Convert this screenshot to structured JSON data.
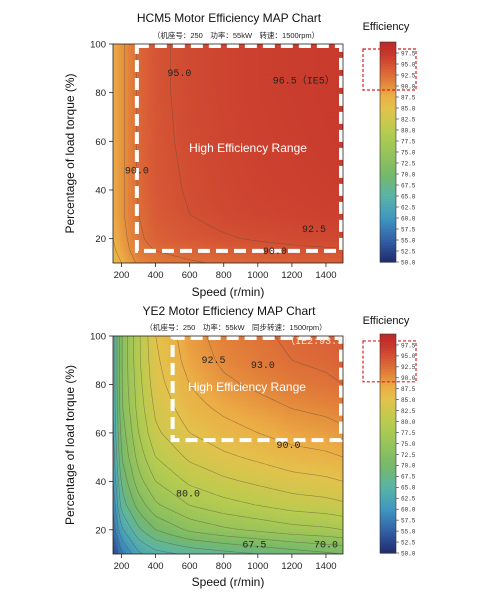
{
  "chart_data": [
    {
      "type": "heatmap",
      "title": "HCM5 Motor Efficiency MAP Chart",
      "subtitle": "（机座号：250　功率：55kW　转速：1500rpm）",
      "xlabel": "Speed (r/min)",
      "ylabel": "Percentage of load torque (%)",
      "x_ticks": [
        200,
        400,
        600,
        800,
        1000,
        1200,
        1400
      ],
      "y_ticks": [
        20,
        40,
        60,
        80,
        100
      ],
      "xlim": [
        150,
        1500
      ],
      "ylim": [
        10,
        100
      ],
      "region_label": "High Efficiency Range",
      "region": {
        "x": [
          290,
          1500
        ],
        "y": [
          15,
          100
        ]
      },
      "grid": false,
      "field": {
        "x": [
          150,
          200,
          250,
          300,
          400,
          600,
          800,
          1000,
          1200,
          1400,
          1500
        ],
        "y": [
          10,
          15,
          20,
          30,
          40,
          60,
          80,
          100
        ],
        "values": [
          [
            86,
            87.5,
            89,
            90.5,
            91.5,
            92.2,
            92.8,
            93.2,
            93.5,
            93.7,
            93.8
          ],
          [
            87,
            88.5,
            90,
            91.5,
            92.5,
            93.3,
            93.8,
            94.2,
            94.5,
            94.7,
            94.8
          ],
          [
            87.5,
            89,
            90.5,
            92,
            93.5,
            94.3,
            94.8,
            95.2,
            95.5,
            95.7,
            95.8
          ],
          [
            88,
            89.5,
            91,
            92.5,
            94,
            95,
            95.6,
            96,
            96.2,
            96.4,
            96.5
          ],
          [
            88,
            89.5,
            91,
            92.8,
            94.3,
            95.2,
            95.8,
            96.2,
            96.4,
            96.6,
            96.7
          ],
          [
            88,
            89.5,
            91,
            93,
            94.5,
            95.4,
            96,
            96.4,
            96.6,
            96.8,
            96.9
          ],
          [
            88,
            89.5,
            91,
            93,
            94.6,
            95.5,
            96.1,
            96.5,
            96.7,
            96.9,
            97
          ],
          [
            88,
            89.5,
            91,
            93,
            94.6,
            95.5,
            96.1,
            96.5,
            96.7,
            96.9,
            97
          ]
        ]
      },
      "contour_labels": [
        {
          "text": "95.0",
          "x": 540,
          "y": 88
        },
        {
          "text": "96.5（IE5）",
          "x": 1270,
          "y": 85
        },
        {
          "text": "90.0",
          "x": 290,
          "y": 48
        },
        {
          "text": "92.5",
          "x": 1330,
          "y": 24
        },
        {
          "text": "90.0",
          "x": 1100,
          "y": 15
        }
      ],
      "colorbar": {
        "title": "Efficiency",
        "highlight": [
          90.0,
          97.5
        ]
      }
    },
    {
      "type": "heatmap",
      "title": "YE2 Motor Efficiency MAP Chart",
      "subtitle": "（机座号：250　功率：55kW　同步转速：1500rpm）",
      "xlabel": "Speed (r/min)",
      "ylabel": "Percentage of load torque (%)",
      "x_ticks": [
        200,
        400,
        600,
        800,
        1000,
        1200,
        1400
      ],
      "y_ticks": [
        20,
        40,
        60,
        80,
        100
      ],
      "xlim": [
        150,
        1500
      ],
      "ylim": [
        10,
        100
      ],
      "region_label": "High Efficiency Range",
      "region": {
        "x": [
          500,
          1500
        ],
        "y": [
          57,
          100
        ]
      },
      "grid": false,
      "field": {
        "x": [
          150,
          200,
          300,
          400,
          600,
          800,
          1000,
          1200,
          1400,
          1500
        ],
        "y": [
          10,
          20,
          30,
          40,
          50,
          60,
          70,
          80,
          90,
          100
        ],
        "values": [
          [
            52,
            57,
            62,
            64,
            65.5,
            66.5,
            67.5,
            68.5,
            69.5,
            70
          ],
          [
            56,
            62,
            67,
            70,
            73,
            74.5,
            75.5,
            76.5,
            77,
            77.5
          ],
          [
            58,
            66,
            71,
            74.5,
            77.5,
            79,
            80,
            81,
            81.5,
            82
          ],
          [
            60,
            68,
            74,
            77.5,
            80.5,
            82,
            83,
            84,
            84.5,
            85
          ],
          [
            61,
            70,
            76,
            80,
            83,
            84.5,
            85.5,
            86.5,
            87,
            87.5
          ],
          [
            62,
            71,
            77.5,
            82,
            85,
            86.5,
            87.5,
            88.5,
            89,
            89.5
          ],
          [
            62.5,
            72,
            78.5,
            83,
            86.5,
            88,
            89,
            90,
            90.5,
            91
          ],
          [
            63,
            72.5,
            79,
            84,
            87.5,
            89.5,
            90.5,
            91.5,
            92,
            92.5
          ],
          [
            63,
            72.5,
            79.5,
            84.5,
            88.5,
            90.5,
            91.5,
            92.5,
            93,
            93.5
          ],
          [
            63,
            72.5,
            79.5,
            85,
            89,
            91,
            92,
            93,
            93.5,
            94
          ]
        ]
      },
      "contour_labels": [
        {
          "text": "（IE2:93.5）",
          "x": 1360,
          "y": 98
        },
        {
          "text": "92.5",
          "x": 740,
          "y": 90
        },
        {
          "text": "93.0",
          "x": 1030,
          "y": 88
        },
        {
          "text": "90.0",
          "x": 1180,
          "y": 55
        },
        {
          "text": "80.0",
          "x": 590,
          "y": 35
        },
        {
          "text": "67.5",
          "x": 980,
          "y": 14
        },
        {
          "text": "70.0",
          "x": 1400,
          "y": 14
        }
      ],
      "colorbar": {
        "title": "Efficiency",
        "highlight": [
          90.0,
          97.5
        ]
      }
    }
  ],
  "colorbar_ticks": [
    "97.5",
    "95.0",
    "92.5",
    "90.0",
    "87.5",
    "85.0",
    "82.5",
    "80.0",
    "77.5",
    "75.0",
    "72.5",
    "70.0",
    "67.5",
    "65.0",
    "62.5",
    "60.0",
    "57.5",
    "55.0",
    "52.5",
    "50.0"
  ],
  "colorscale": {
    "min": 50,
    "max": 100,
    "stops": [
      [
        50,
        "#1f2c6b"
      ],
      [
        55,
        "#3361a8"
      ],
      [
        60,
        "#3f97bf"
      ],
      [
        65,
        "#5ab4a6"
      ],
      [
        70,
        "#77b969"
      ],
      [
        75,
        "#98c45a"
      ],
      [
        80,
        "#b9cc4f"
      ],
      [
        85,
        "#e3c24c"
      ],
      [
        88,
        "#ecac45"
      ],
      [
        91,
        "#e2803a"
      ],
      [
        94,
        "#d85b36"
      ],
      [
        97,
        "#c83a2d"
      ],
      [
        100,
        "#b8292a"
      ]
    ]
  }
}
